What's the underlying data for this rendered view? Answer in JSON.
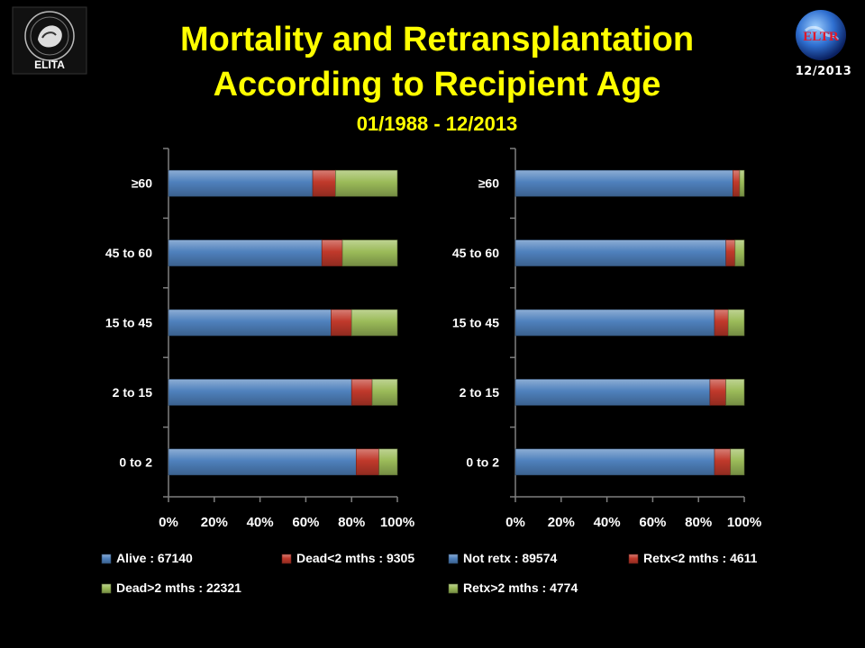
{
  "header": {
    "title_line1": "Mortality and Retransplantation",
    "title_line2": "According to Recipient Age",
    "period": "01/1988 - 12/2013",
    "date_badge": "12/2013",
    "left_logo_text": "ELITA",
    "right_logo_text": "ELTR"
  },
  "colors": {
    "blue": "#4f81bd",
    "red": "#c0392b",
    "green": "#9bbb59",
    "background": "#000000",
    "title": "#ffff00",
    "text": "#ffffff"
  },
  "chart_data": [
    {
      "type": "bar",
      "orientation": "horizontal",
      "stacked": true,
      "percent": true,
      "categories": [
        "≥60",
        "45 to 60",
        "15 to 45",
        "2 to 15",
        "0 to 2"
      ],
      "xticks": [
        "0%",
        "20%",
        "40%",
        "60%",
        "80%",
        "100%"
      ],
      "xlim": [
        0,
        100
      ],
      "legend_position": "bottom",
      "series": [
        {
          "name": "Alive : 67140",
          "color": "#4f81bd",
          "values": [
            63,
            67,
            71,
            80,
            82
          ]
        },
        {
          "name": "Dead<2 mths : 9305",
          "color": "#c0392b",
          "values": [
            10,
            9,
            9,
            9,
            10
          ]
        },
        {
          "name": "Dead>2 mths : 22321",
          "color": "#9bbb59",
          "values": [
            27,
            24,
            20,
            11,
            8
          ]
        }
      ]
    },
    {
      "type": "bar",
      "orientation": "horizontal",
      "stacked": true,
      "percent": true,
      "categories": [
        "≥60",
        "45 to 60",
        "15 to 45",
        "2 to 15",
        "0 to 2"
      ],
      "xticks": [
        "0%",
        "20%",
        "40%",
        "60%",
        "80%",
        "100%"
      ],
      "xlim": [
        0,
        100
      ],
      "legend_position": "bottom",
      "series": [
        {
          "name": "Not retx : 89574",
          "color": "#4f81bd",
          "values": [
            95,
            92,
            87,
            85,
            87
          ]
        },
        {
          "name": "Retx<2 mths : 4611",
          "color": "#c0392b",
          "values": [
            3,
            4,
            6,
            7,
            7
          ]
        },
        {
          "name": "Retx>2 mths : 4774",
          "color": "#9bbb59",
          "values": [
            2,
            4,
            7,
            8,
            6
          ]
        }
      ]
    }
  ]
}
